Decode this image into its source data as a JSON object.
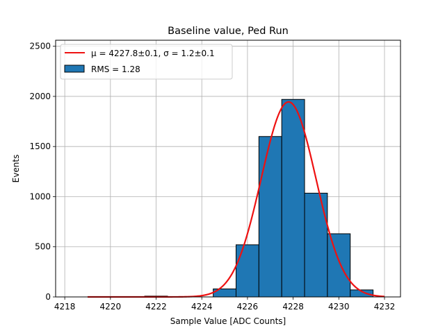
{
  "chart_data": {
    "type": "bar",
    "title": "Baseline value, Ped Run",
    "xlabel": "Sample Value [ADC Counts]",
    "ylabel": "Events",
    "xlim": [
      4217.6,
      4232.7
    ],
    "ylim": [
      0,
      2560
    ],
    "grid": true,
    "x_ticks": [
      4218,
      4220,
      4222,
      4224,
      4226,
      4228,
      4230,
      4232
    ],
    "y_ticks": [
      0,
      500,
      1000,
      1500,
      2000,
      2500
    ],
    "bin_width": 1.0,
    "bins": [
      {
        "start": 4218.5,
        "count": 0
      },
      {
        "start": 4219.5,
        "count": 0
      },
      {
        "start": 4220.5,
        "count": 0
      },
      {
        "start": 4221.5,
        "count": 8
      },
      {
        "start": 4222.5,
        "count": 0
      },
      {
        "start": 4223.5,
        "count": 0
      },
      {
        "start": 4224.5,
        "count": 80
      },
      {
        "start": 4225.5,
        "count": 520
      },
      {
        "start": 4226.5,
        "count": 1600
      },
      {
        "start": 4227.5,
        "count": 1970
      },
      {
        "start": 4228.5,
        "count": 1035
      },
      {
        "start": 4229.5,
        "count": 630
      },
      {
        "start": 4230.5,
        "count": 70
      }
    ],
    "fit": {
      "mu": 4227.8,
      "sigma": 1.2,
      "amplitude": 1945,
      "x_range": [
        4219,
        4232
      ]
    },
    "legend": [
      {
        "label": "μ = 4227.8±0.1, σ = 1.2±0.1",
        "type": "line",
        "color": "#ee1111"
      },
      {
        "label": "RMS = 1.28",
        "type": "patch",
        "color": "#1f77b4"
      }
    ],
    "legend_position": "top-left",
    "colors": {
      "bar_fill": "#1f77b4",
      "bar_edge": "#000000",
      "fit_line": "#ee1111",
      "grid": "#b0b0b0"
    }
  }
}
